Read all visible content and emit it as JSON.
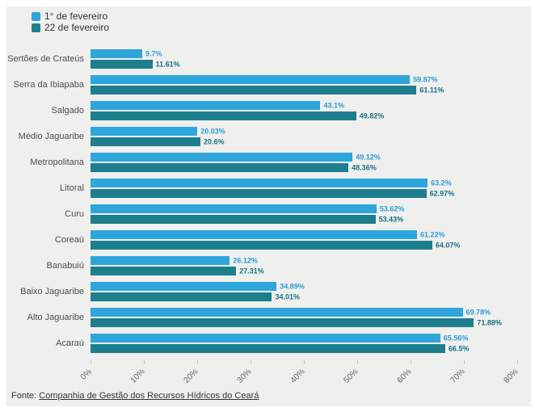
{
  "chart_data": {
    "type": "bar",
    "orientation": "horizontal",
    "grid": false,
    "legend_position": "top-left",
    "xlim": [
      0,
      80
    ],
    "tick_step": 10,
    "x_ticks": [
      "0%",
      "10%",
      "20%",
      "30%",
      "40%",
      "50%",
      "60%",
      "70%",
      "80%"
    ],
    "categories": [
      "Sertões de Crateús",
      "Serra da Ibiapaba",
      "Salgado",
      "Médio Jaguaribe",
      "Metropolitana",
      "Litoral",
      "Curu",
      "Coreaú",
      "Banabuiú",
      "Baixo Jaguaribe",
      "Alto Jaguaribe",
      "Acaraú"
    ],
    "series": [
      {
        "name": "1° de fevereiro",
        "color": "#2fa6db",
        "label_color": "#2b9cd3",
        "values": [
          9.7,
          59.87,
          43.1,
          20.03,
          49.12,
          63.2,
          53.62,
          61.22,
          26.12,
          34.89,
          69.78,
          65.56
        ],
        "labels": [
          "9.7%",
          "59.87%",
          "43.1%",
          "20.03%",
          "49.12%",
          "63.2%",
          "53.62%",
          "61.22%",
          "26.12%",
          "34.89%",
          "69.78%",
          "65.56%"
        ]
      },
      {
        "name": "22 de fevereiro",
        "color": "#1d7f8d",
        "label_color": "#157183",
        "values": [
          11.61,
          61.11,
          49.82,
          20.6,
          48.36,
          62.97,
          53.43,
          64.07,
          27.31,
          34.01,
          71.88,
          66.5
        ],
        "labels": [
          "11.61%",
          "61.11%",
          "49.82%",
          "20.6%",
          "48.36%",
          "62.97%",
          "53.43%",
          "64.07%",
          "27.31%",
          "34.01%",
          "71.88%",
          "66.5%"
        ]
      }
    ]
  },
  "footer": {
    "prefix": "Fonte: ",
    "link": "Companhia de Gestão dos Recursos Hídricos do Ceará"
  }
}
